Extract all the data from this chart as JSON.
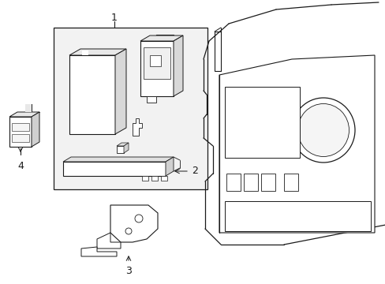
{
  "background_color": "#ffffff",
  "line_color": "#1a1a1a",
  "box_bg": "#f0f0f0",
  "label_1": "1",
  "label_2": "2",
  "label_3": "3",
  "label_4": "4",
  "font_size_labels": 9,
  "fig_width": 4.89,
  "fig_height": 3.6,
  "dpi": 100
}
